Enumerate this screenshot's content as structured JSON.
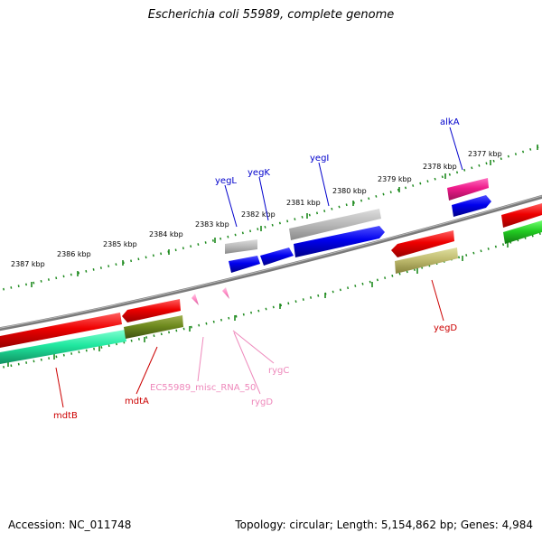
{
  "title": "Escherichia coli 55989, complete genome",
  "footer": {
    "accession_label": "Accession: NC_011748",
    "summary_label": "Topology: circular; Length: 5,154,862 bp; Genes: 4,984"
  },
  "colors": {
    "backbone": "#808080",
    "ruler": "#1e8a1e",
    "gene_label": "#0000cc",
    "feature_label_red": "#cc0000",
    "rna_label": "#ee88bb"
  },
  "ruler_labels": [
    {
      "name": "ruler-label-2387",
      "text": "2387 kbp"
    },
    {
      "name": "ruler-label-2386",
      "text": "2386 kbp"
    },
    {
      "name": "ruler-label-2385",
      "text": "2385 kbp"
    },
    {
      "name": "ruler-label-2384",
      "text": "2384 kbp"
    },
    {
      "name": "ruler-label-2383",
      "text": "2383 kbp"
    },
    {
      "name": "ruler-label-2382",
      "text": "2382 kbp"
    },
    {
      "name": "ruler-label-2381",
      "text": "2381 kbp"
    },
    {
      "name": "ruler-label-2380",
      "text": "2380 kbp"
    },
    {
      "name": "ruler-label-2379",
      "text": "2379 kbp"
    },
    {
      "name": "ruler-label-2378",
      "text": "2378 kbp"
    },
    {
      "name": "ruler-label-2377",
      "text": "2377 kbp"
    }
  ],
  "gene_labels": {
    "yegL": "yegL",
    "yegK": "yegK",
    "yegI": "yegI",
    "alkA": "alkA",
    "yegD": "yegD",
    "mdtA": "mdtA",
    "mdtB": "mdtB",
    "misc_rna": "EC55989_misc_RNA_50",
    "rygC": "rygC",
    "rygD": "rygD"
  }
}
